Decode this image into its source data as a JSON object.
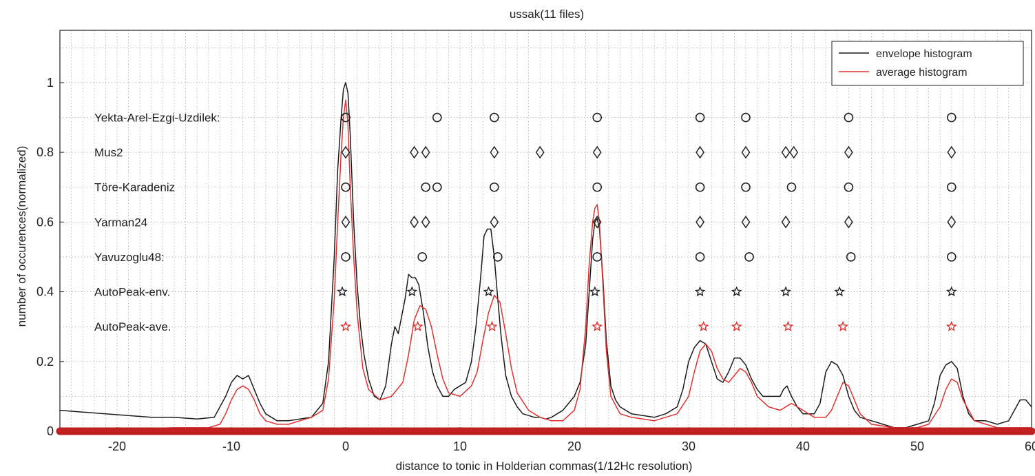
{
  "chart_data": {
    "type": "line",
    "title": "ussak(11 files)",
    "xlabel": "distance to tonic in Holderian commas(1/12Hc resolution)",
    "ylabel": "number of occurences(normalized)",
    "xlim": [
      -25,
      60
    ],
    "ylim": [
      0,
      1.15
    ],
    "x_ticks": [
      -20,
      -10,
      0,
      10,
      20,
      30,
      40,
      50,
      60
    ],
    "y_ticks": [
      0,
      0.2,
      0.4,
      0.6,
      0.8,
      1
    ],
    "grid": true,
    "legend_position": "top-right",
    "colors": {
      "envelope": "#1a1a1a",
      "average": "#e03030",
      "baseline": "#c02020",
      "grid": "#9a9a9a"
    },
    "series": [
      {
        "name": "envelope histogram",
        "color": "#1a1a1a",
        "x": [
          -25,
          -23,
          -21,
          -19,
          -17,
          -15,
          -13,
          -11.5,
          -10.5,
          -10,
          -9.5,
          -9,
          -8.5,
          -8,
          -7.5,
          -7,
          -6,
          -5,
          -4,
          -3,
          -2,
          -1.5,
          -1,
          -0.7,
          -0.4,
          -0.2,
          0,
          0.2,
          0.4,
          0.7,
          1,
          1.3,
          1.6,
          2,
          2.5,
          3,
          3.5,
          4,
          4.3,
          4.6,
          4.9,
          5.2,
          5.5,
          5.8,
          6.1,
          6.4,
          6.8,
          7.2,
          7.6,
          8,
          8.5,
          9,
          9.5,
          10,
          10.5,
          11,
          11.4,
          11.8,
          12.1,
          12.4,
          12.7,
          13,
          13.3,
          13.6,
          14,
          14.5,
          15,
          15.5,
          16,
          16.5,
          17,
          17.5,
          18,
          18.5,
          19,
          19.5,
          20,
          20.5,
          21,
          21.3,
          21.6,
          21.8,
          22,
          22.2,
          22.5,
          22.8,
          23.2,
          23.6,
          24,
          25,
          26,
          27,
          28,
          29,
          29.5,
          30,
          30.5,
          31,
          31.5,
          32,
          32.5,
          33,
          33.5,
          34,
          34.5,
          35,
          35.5,
          36,
          36.5,
          37,
          37.5,
          38,
          38.3,
          38.6,
          39,
          39.5,
          40,
          40.5,
          41,
          41.5,
          42,
          42.5,
          43,
          43.5,
          44,
          44.5,
          45,
          46,
          47,
          48,
          49,
          50,
          51,
          51.5,
          52,
          52.5,
          53,
          53.5,
          54,
          54.5,
          55,
          56,
          57,
          58,
          58.5,
          59,
          59.5,
          60
        ],
        "values": [
          0.06,
          0.055,
          0.05,
          0.045,
          0.04,
          0.04,
          0.035,
          0.04,
          0.1,
          0.14,
          0.16,
          0.15,
          0.16,
          0.12,
          0.08,
          0.05,
          0.03,
          0.03,
          0.035,
          0.04,
          0.08,
          0.2,
          0.5,
          0.75,
          0.9,
          0.98,
          1.0,
          0.97,
          0.85,
          0.6,
          0.42,
          0.3,
          0.22,
          0.15,
          0.1,
          0.09,
          0.13,
          0.25,
          0.3,
          0.28,
          0.33,
          0.38,
          0.45,
          0.44,
          0.44,
          0.42,
          0.34,
          0.24,
          0.17,
          0.13,
          0.1,
          0.1,
          0.12,
          0.13,
          0.14,
          0.2,
          0.3,
          0.44,
          0.56,
          0.58,
          0.58,
          0.5,
          0.38,
          0.27,
          0.16,
          0.1,
          0.07,
          0.05,
          0.045,
          0.04,
          0.04,
          0.035,
          0.04,
          0.05,
          0.06,
          0.08,
          0.1,
          0.14,
          0.25,
          0.4,
          0.55,
          0.6,
          0.61,
          0.58,
          0.44,
          0.26,
          0.13,
          0.09,
          0.07,
          0.05,
          0.045,
          0.04,
          0.05,
          0.07,
          0.12,
          0.2,
          0.24,
          0.26,
          0.25,
          0.2,
          0.15,
          0.14,
          0.17,
          0.21,
          0.21,
          0.19,
          0.15,
          0.12,
          0.1,
          0.1,
          0.1,
          0.1,
          0.12,
          0.13,
          0.1,
          0.07,
          0.05,
          0.05,
          0.05,
          0.08,
          0.17,
          0.2,
          0.19,
          0.16,
          0.1,
          0.06,
          0.04,
          0.03,
          0.02,
          0.01,
          0.01,
          0.02,
          0.03,
          0.08,
          0.16,
          0.19,
          0.2,
          0.18,
          0.1,
          0.05,
          0.03,
          0.03,
          0.02,
          0.03,
          0.06,
          0.09,
          0.09,
          0.07
        ]
      },
      {
        "name": "average histogram",
        "color": "#e03030",
        "x": [
          -25,
          -20,
          -15,
          -12,
          -11,
          -10.5,
          -10,
          -9.5,
          -9,
          -8.5,
          -8,
          -7.5,
          -7,
          -6,
          -5,
          -4,
          -3,
          -2,
          -1.5,
          -1,
          -0.7,
          -0.4,
          -0.2,
          0,
          0.2,
          0.4,
          0.7,
          1,
          1.5,
          2,
          3,
          4,
          5,
          5.5,
          6,
          6.5,
          7,
          7.5,
          8,
          8.5,
          9,
          10,
          11,
          11.5,
          12,
          12.5,
          13,
          13.5,
          14,
          14.5,
          15,
          16,
          17,
          18,
          19,
          20,
          20.5,
          21,
          21.3,
          21.6,
          21.8,
          22,
          22.2,
          22.5,
          22.8,
          23.2,
          24,
          25,
          27,
          29,
          30,
          30.5,
          31,
          31.5,
          32,
          32.5,
          33,
          33.5,
          34,
          34.5,
          35,
          35.5,
          36,
          37,
          38,
          38.5,
          39,
          40,
          41,
          42,
          42.5,
          43,
          43.5,
          44,
          44.5,
          45,
          46,
          48,
          50,
          51,
          52,
          52.5,
          53,
          53.5,
          54,
          55,
          57,
          58,
          59,
          60
        ],
        "values": [
          0.005,
          0.005,
          0.01,
          0.01,
          0.02,
          0.05,
          0.09,
          0.12,
          0.13,
          0.12,
          0.09,
          0.05,
          0.03,
          0.02,
          0.02,
          0.03,
          0.04,
          0.06,
          0.15,
          0.38,
          0.6,
          0.8,
          0.9,
          0.95,
          0.88,
          0.7,
          0.5,
          0.34,
          0.18,
          0.12,
          0.09,
          0.1,
          0.14,
          0.22,
          0.32,
          0.36,
          0.35,
          0.3,
          0.22,
          0.15,
          0.11,
          0.1,
          0.13,
          0.17,
          0.26,
          0.34,
          0.39,
          0.37,
          0.28,
          0.18,
          0.11,
          0.06,
          0.04,
          0.03,
          0.03,
          0.06,
          0.12,
          0.3,
          0.48,
          0.6,
          0.64,
          0.65,
          0.6,
          0.42,
          0.23,
          0.1,
          0.05,
          0.04,
          0.03,
          0.05,
          0.1,
          0.17,
          0.23,
          0.25,
          0.23,
          0.18,
          0.15,
          0.14,
          0.16,
          0.18,
          0.17,
          0.14,
          0.1,
          0.07,
          0.06,
          0.07,
          0.08,
          0.06,
          0.04,
          0.04,
          0.06,
          0.1,
          0.14,
          0.13,
          0.09,
          0.05,
          0.02,
          0.01,
          0.01,
          0.02,
          0.07,
          0.12,
          0.15,
          0.14,
          0.09,
          0.03,
          0.01,
          0.01,
          0.01,
          0.01
        ]
      }
    ],
    "marker_rows": [
      {
        "label": "Yekta-Arel-Ezgi-Uzdilek:",
        "y": 0.9,
        "marker": "circle",
        "color": "#222222",
        "positions": [
          0,
          8,
          13,
          22,
          31,
          35,
          44,
          53
        ]
      },
      {
        "label": "Mus2",
        "y": 0.8,
        "marker": "diamond",
        "color": "#222222",
        "positions": [
          0,
          6,
          7,
          13,
          17,
          22,
          31,
          35,
          38.5,
          39.2,
          44,
          53
        ]
      },
      {
        "label": "Töre-Karadeniz",
        "y": 0.7,
        "marker": "circle",
        "color": "#222222",
        "positions": [
          0,
          7,
          8,
          13,
          22,
          31,
          35,
          39,
          44,
          53
        ]
      },
      {
        "label": "Yarman24",
        "y": 0.6,
        "marker": "diamond",
        "color": "#222222",
        "positions": [
          0,
          6,
          7,
          13,
          22,
          31,
          35,
          38.5,
          44,
          53
        ]
      },
      {
        "label": "Yavuzoglu48:",
        "y": 0.5,
        "marker": "circle",
        "color": "#222222",
        "positions": [
          0,
          6.7,
          13.3,
          22,
          31,
          35.3,
          44.2,
          53
        ]
      },
      {
        "label": "AutoPeak-env.",
        "y": 0.4,
        "marker": "star",
        "color": "#222222",
        "positions": [
          -0.3,
          5.8,
          12.5,
          21.8,
          31,
          34.2,
          38.5,
          43.2,
          53
        ]
      },
      {
        "label": "AutoPeak-ave.",
        "y": 0.3,
        "marker": "star",
        "color": "#e03030",
        "positions": [
          0,
          6.3,
          12.8,
          22,
          31.3,
          34.2,
          38.7,
          43.5,
          53
        ]
      }
    ]
  }
}
